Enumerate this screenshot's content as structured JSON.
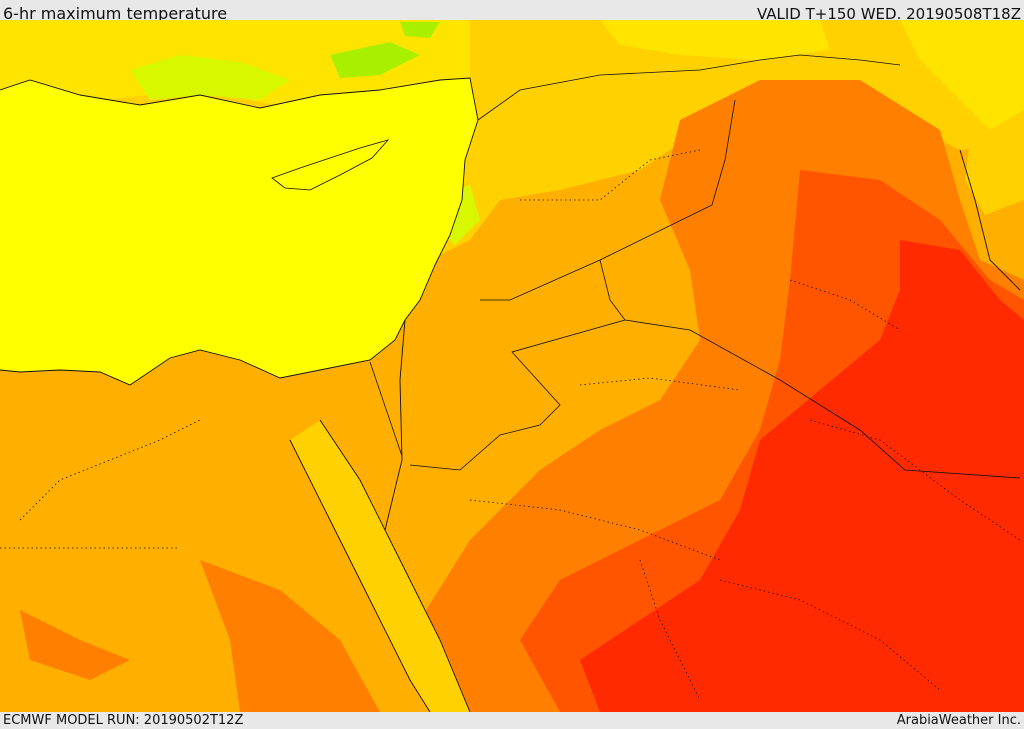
{
  "header": {
    "title": "6-hr maximum temperature",
    "valid": "VALID T+150 WED. 20190508T18Z"
  },
  "footer": {
    "model_run": "ECMWF MODEL RUN: 20190502T12Z",
    "credit": "ArabiaWeather Inc."
  },
  "colors": {
    "sea_yellow": "#ffff00",
    "light_yellow": "#ffe400",
    "yellow_orange": "#ffd100",
    "orange": "#ffaf00",
    "dark_orange": "#ff7f00",
    "red_orange": "#ff5500",
    "red": "#ff2a00",
    "green": "#a8f000",
    "light_green": "#d8f800"
  }
}
